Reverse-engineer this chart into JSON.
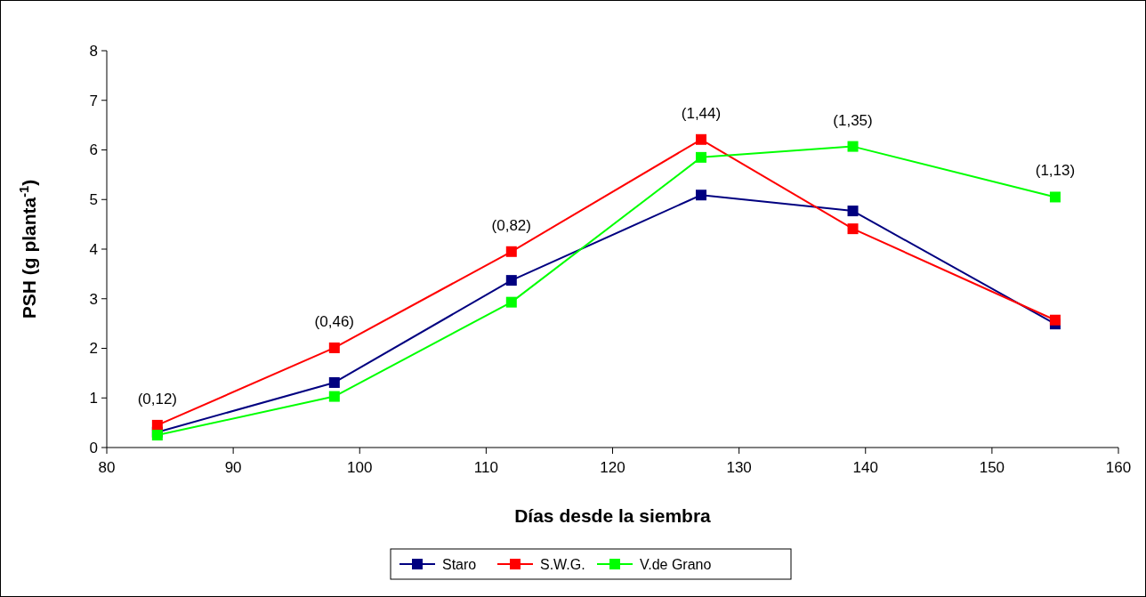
{
  "chart_data": {
    "type": "line",
    "xlabel": "Días desde la siembra",
    "ylabel": "PSH (g planta$^{-1}$)",
    "xlim": [
      80,
      160
    ],
    "xticks": [
      80,
      90,
      100,
      110,
      120,
      130,
      140,
      150,
      160
    ],
    "ylim": [
      0,
      8
    ],
    "yticks": [
      0,
      1,
      2,
      3,
      4,
      5,
      6,
      7,
      8
    ],
    "x": [
      84,
      98,
      112,
      127,
      139,
      155
    ],
    "series": [
      {
        "name": "Staro",
        "color": "#000080",
        "values": [
          0.31,
          1.31,
          3.37,
          5.09,
          4.77,
          2.49
        ]
      },
      {
        "name": "S.W.G.",
        "color": "#ff0000",
        "values": [
          0.45,
          2.01,
          3.95,
          6.21,
          4.41,
          2.57
        ]
      },
      {
        "name": "V.de Grano",
        "color": "#00ff00",
        "values": [
          0.25,
          1.03,
          2.93,
          5.85,
          6.07,
          5.05
        ]
      }
    ],
    "annotations": [
      "(0,12)",
      "(0,46)",
      "(0,82)",
      "(1,44)",
      "(1,35)",
      "(1,13)"
    ],
    "marker": "square",
    "line_style": "solid",
    "grid": false,
    "legend": "bottom"
  }
}
